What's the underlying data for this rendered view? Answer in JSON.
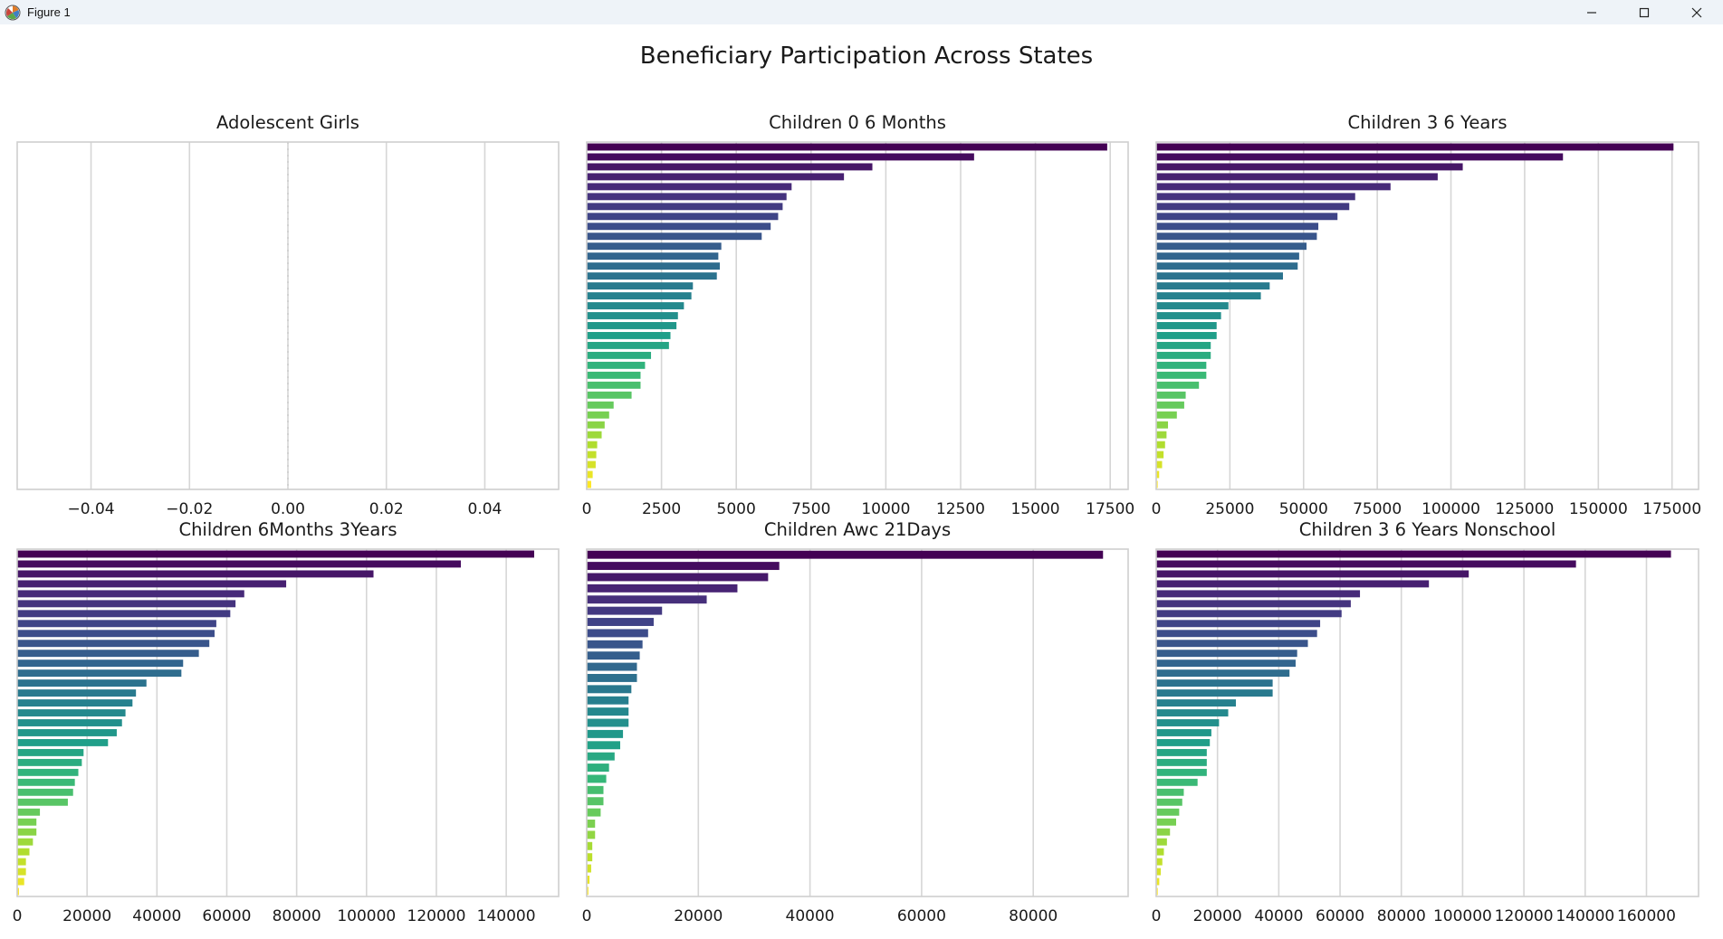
{
  "window": {
    "title": "Figure 1",
    "controls": [
      "minimize-icon",
      "maximize-icon",
      "close-icon"
    ]
  },
  "figure": {
    "suptitle": "Beneficiary Participation Across States"
  },
  "chart_data": [
    {
      "type": "bar",
      "orientation": "horizontal",
      "title": "Adolescent Girls",
      "xlim": [
        -0.055,
        0.055
      ],
      "xticks": [
        -0.04,
        -0.02,
        0.0,
        0.02,
        0.04
      ],
      "xtick_labels": [
        "−0.04",
        "−0.02",
        "0.00",
        "0.02",
        "0.04"
      ],
      "values": [],
      "zero_line": "dotted",
      "grid": "vertical",
      "palette": "viridis"
    },
    {
      "type": "bar",
      "orientation": "horizontal",
      "title": "Children 0 6 Months",
      "xlim": [
        0,
        18100
      ],
      "xticks": [
        0,
        2500,
        5000,
        7500,
        10000,
        12500,
        15000,
        17500
      ],
      "xtick_labels": [
        "0",
        "2500",
        "5000",
        "7500",
        "10000",
        "12500",
        "15000",
        "17500"
      ],
      "values": [
        17400,
        12950,
        9550,
        8600,
        6850,
        6680,
        6550,
        6400,
        6150,
        5850,
        4500,
        4400,
        4450,
        4350,
        3550,
        3500,
        3250,
        3050,
        3000,
        2800,
        2750,
        2150,
        1950,
        1800,
        1800,
        1500,
        900,
        750,
        600,
        500,
        350,
        320,
        300,
        200,
        150
      ],
      "grid": "vertical",
      "palette": "viridis"
    },
    {
      "type": "bar",
      "orientation": "horizontal",
      "title": "Children 3 6 Years",
      "xlim": [
        0,
        184000
      ],
      "xticks": [
        0,
        25000,
        50000,
        75000,
        100000,
        125000,
        150000,
        175000
      ],
      "xtick_labels": [
        "0",
        "25000",
        "50000",
        "75000",
        "100000",
        "125000",
        "150000",
        "175000"
      ],
      "values": [
        175500,
        138000,
        104000,
        95500,
        79500,
        67500,
        65500,
        61500,
        55000,
        54500,
        51000,
        48500,
        48000,
        43000,
        38500,
        35500,
        24500,
        22000,
        20500,
        20500,
        18500,
        18500,
        17000,
        17000,
        14500,
        10000,
        9500,
        7000,
        4000,
        3500,
        3000,
        2500,
        2000,
        1000,
        500
      ],
      "grid": "vertical",
      "palette": "viridis"
    },
    {
      "type": "bar",
      "orientation": "horizontal",
      "title": "Children 6Months 3Years",
      "xlim": [
        0,
        155000
      ],
      "xticks": [
        0,
        20000,
        40000,
        60000,
        80000,
        100000,
        120000,
        140000
      ],
      "xtick_labels": [
        "0",
        "20000",
        "40000",
        "60000",
        "80000",
        "100000",
        "120000",
        "140000"
      ],
      "values": [
        148000,
        127000,
        102000,
        77000,
        65000,
        62500,
        61000,
        57000,
        56500,
        55000,
        52000,
        47500,
        47000,
        37000,
        34000,
        33000,
        31000,
        30000,
        28500,
        26000,
        19000,
        18500,
        17500,
        16500,
        16000,
        14500,
        6500,
        5500,
        5500,
        4500,
        3500,
        2500,
        2500,
        2000,
        500
      ],
      "grid": "vertical",
      "palette": "viridis"
    },
    {
      "type": "bar",
      "orientation": "horizontal",
      "title": "Children Awc 21Days",
      "xlim": [
        0,
        97000
      ],
      "xticks": [
        0,
        20000,
        40000,
        60000,
        80000
      ],
      "xtick_labels": [
        "0",
        "20000",
        "40000",
        "60000",
        "80000"
      ],
      "values": [
        92500,
        34500,
        32500,
        27000,
        21500,
        13500,
        12000,
        11000,
        10000,
        9500,
        9000,
        9000,
        8000,
        7500,
        7500,
        7500,
        6500,
        6000,
        5000,
        4000,
        3500,
        3000,
        3000,
        2500,
        1500,
        1500,
        1000,
        1000,
        800,
        500,
        300
      ],
      "grid": "vertical",
      "palette": "viridis"
    },
    {
      "type": "bar",
      "orientation": "horizontal",
      "title": "Children 3 6 Years Nonschool",
      "xlim": [
        0,
        177000
      ],
      "xticks": [
        0,
        20000,
        40000,
        60000,
        80000,
        100000,
        120000,
        140000,
        160000
      ],
      "xtick_labels": [
        "0",
        "20000",
        "40000",
        "60000",
        "80000",
        "100000",
        "120000",
        "140000",
        "160000"
      ],
      "values": [
        168000,
        137000,
        102000,
        89000,
        66500,
        63500,
        60500,
        53500,
        52500,
        49500,
        46000,
        45500,
        43500,
        38000,
        38000,
        26000,
        23500,
        20500,
        18000,
        17500,
        16500,
        16500,
        16500,
        13500,
        9000,
        8500,
        7500,
        6500,
        4500,
        3500,
        2500,
        2000,
        1500,
        1000,
        500
      ],
      "grid": "vertical",
      "palette": "viridis"
    }
  ]
}
